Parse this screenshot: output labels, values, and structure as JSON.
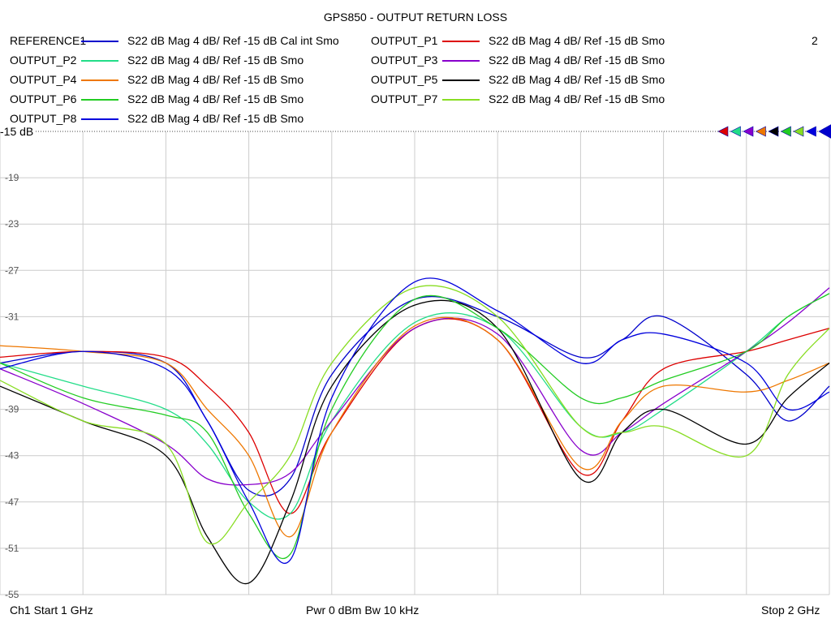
{
  "title": "GPS850 - OUTPUT RETURN LOSS",
  "channel_number": "2",
  "ref_label": "-15 dB",
  "footer": {
    "start": "Ch1  Start  1 GHz",
    "middle": "Pwr  0 dBm  Bw  10 kHz",
    "stop": "Stop  2 GHz"
  },
  "legend": [
    {
      "name": "REFERENCE1",
      "desc": "S22  dB Mag  4 dB/ Ref -15 dB  Cal int Smo",
      "color": "#0000cc"
    },
    {
      "name": "OUTPUT_P1",
      "desc": "S22  dB Mag  4 dB/ Ref -15 dB  Smo",
      "color": "#dd0000"
    },
    {
      "name": "OUTPUT_P2",
      "desc": "S22  dB Mag  4 dB/ Ref -15 dB  Smo",
      "color": "#22dd88"
    },
    {
      "name": "OUTPUT_P3",
      "desc": "S22  dB Mag  4 dB/ Ref -15 dB  Smo",
      "color": "#8800cc"
    },
    {
      "name": "OUTPUT_P4",
      "desc": "S22  dB Mag  4 dB/ Ref -15 dB  Smo",
      "color": "#ee7700"
    },
    {
      "name": "OUTPUT_P5",
      "desc": "S22  dB Mag  4 dB/ Ref -15 dB  Smo",
      "color": "#000000"
    },
    {
      "name": "OUTPUT_P6",
      "desc": "S22  dB Mag  4 dB/ Ref -15 dB  Smo",
      "color": "#22cc22"
    },
    {
      "name": "OUTPUT_P7",
      "desc": "S22  dB Mag  4 dB/ Ref -15 dB  Smo",
      "color": "#88dd22"
    },
    {
      "name": "OUTPUT_P8",
      "desc": "S22  dB Mag  4 dB/ Ref -15 dB  Smo",
      "color": "#0000dd"
    }
  ],
  "chart_data": {
    "type": "line",
    "title": "GPS850 - OUTPUT RETURN LOSS",
    "xlabel": "",
    "ylabel": "",
    "x_unit": "GHz",
    "xlim": [
      1.0,
      2.0
    ],
    "ylim": [
      -55,
      -15
    ],
    "yticks": [
      -15,
      -19,
      -23,
      -27,
      -31,
      -35,
      -39,
      -43,
      -47,
      -51,
      -55
    ],
    "ytick_labels": [
      "-15",
      "-19",
      "-23",
      "-27",
      "-31",
      "",
      "-39",
      "-43",
      "-47",
      "-51",
      "-55"
    ],
    "grid": true,
    "x": [
      1.0,
      1.1,
      1.2,
      1.25,
      1.3,
      1.35,
      1.4,
      1.5,
      1.6,
      1.7,
      1.75,
      1.8,
      1.9,
      1.95,
      2.0
    ],
    "series": [
      {
        "name": "REFERENCE1",
        "color": "#0000cc",
        "values": [
          -35.0,
          -34.0,
          -35.0,
          -40.0,
          -46.0,
          -45.0,
          -36.0,
          -29.5,
          -31.0,
          -34.5,
          -33.0,
          -31.0,
          -36.0,
          -40.0,
          -37.0
        ]
      },
      {
        "name": "OUTPUT_P1",
        "color": "#dd0000",
        "values": [
          -34.5,
          -34.0,
          -34.5,
          -37.0,
          -41.0,
          -48.0,
          -41.0,
          -32.0,
          -33.0,
          -44.5,
          -40.0,
          -35.5,
          -34.0,
          -33.0,
          -32.0
        ]
      },
      {
        "name": "OUTPUT_P2",
        "color": "#22dd88",
        "values": [
          -35.0,
          -37.0,
          -39.0,
          -42.0,
          -47.0,
          -48.0,
          -40.0,
          -31.5,
          -32.0,
          -40.5,
          -41.0,
          -39.0,
          -34.0,
          -31.0,
          -29.0
        ]
      },
      {
        "name": "OUTPUT_P3",
        "color": "#8800cc",
        "values": [
          -35.5,
          -38.5,
          -42.0,
          -45.0,
          -45.5,
          -44.5,
          -40.0,
          -32.0,
          -32.5,
          -42.5,
          -41.0,
          -38.5,
          -34.0,
          -31.5,
          -28.5
        ]
      },
      {
        "name": "OUTPUT_P4",
        "color": "#ee7700",
        "values": [
          -33.5,
          -34.0,
          -35.0,
          -39.0,
          -43.0,
          -50.0,
          -41.0,
          -31.8,
          -33.0,
          -44.0,
          -40.0,
          -37.0,
          -37.5,
          -36.5,
          -35.0
        ]
      },
      {
        "name": "OUTPUT_P5",
        "color": "#000000",
        "values": [
          -37.0,
          -40.0,
          -43.0,
          -50.0,
          -54.0,
          -47.0,
          -37.0,
          -30.0,
          -32.0,
          -45.0,
          -41.0,
          -39.0,
          -42.0,
          -38.0,
          -35.0
        ]
      },
      {
        "name": "OUTPUT_P6",
        "color": "#22cc22",
        "values": [
          -35.0,
          -38.0,
          -39.5,
          -41.0,
          -48.0,
          -51.5,
          -39.0,
          -29.5,
          -32.0,
          -38.0,
          -38.0,
          -36.5,
          -34.0,
          -31.0,
          -29.0
        ]
      },
      {
        "name": "OUTPUT_P7",
        "color": "#88dd22",
        "values": [
          -36.5,
          -40.0,
          -42.0,
          -50.5,
          -47.0,
          -43.0,
          -35.0,
          -28.5,
          -31.0,
          -40.5,
          -41.0,
          -40.5,
          -43.0,
          -36.0,
          -32.0
        ]
      },
      {
        "name": "OUTPUT_P8",
        "color": "#0000dd",
        "values": [
          -35.5,
          -34.0,
          -35.5,
          -40.0,
          -47.0,
          -52.0,
          -38.0,
          -28.0,
          -30.5,
          -35.0,
          -33.0,
          -32.5,
          -35.0,
          -39.0,
          -37.5
        ]
      }
    ]
  }
}
